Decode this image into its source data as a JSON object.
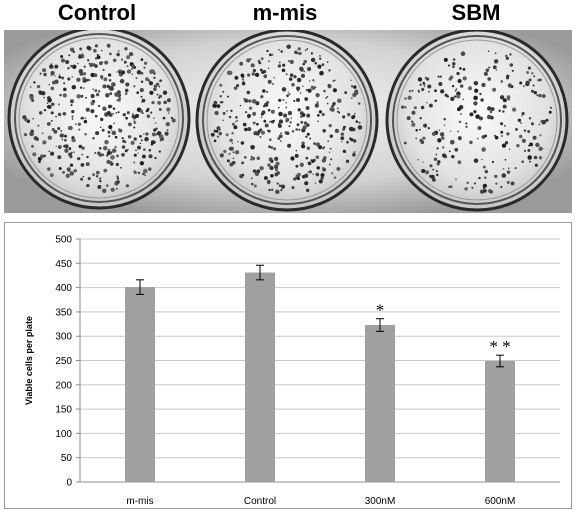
{
  "panels": [
    {
      "title": "Control"
    },
    {
      "title": "m-mis"
    },
    {
      "title": "SBM"
    }
  ],
  "colors": {
    "bar": "#a0a0a0",
    "grid": "#c8c8c8",
    "axis": "#8a8a8a"
  },
  "chart_data": {
    "type": "bar",
    "title": "",
    "xlabel": "",
    "ylabel": "Viable cells per plate",
    "categories": [
      "m-mis",
      "Control",
      "300nM",
      "600nM"
    ],
    "values": [
      401,
      431,
      323,
      249
    ],
    "errors": [
      15,
      15,
      13,
      12
    ],
    "significance": [
      "",
      "",
      "*",
      "* *"
    ],
    "ylim": [
      0,
      500
    ],
    "yticks": [
      0,
      50,
      100,
      150,
      200,
      250,
      300,
      350,
      400,
      450,
      500
    ],
    "grid": true,
    "legend": "none"
  }
}
